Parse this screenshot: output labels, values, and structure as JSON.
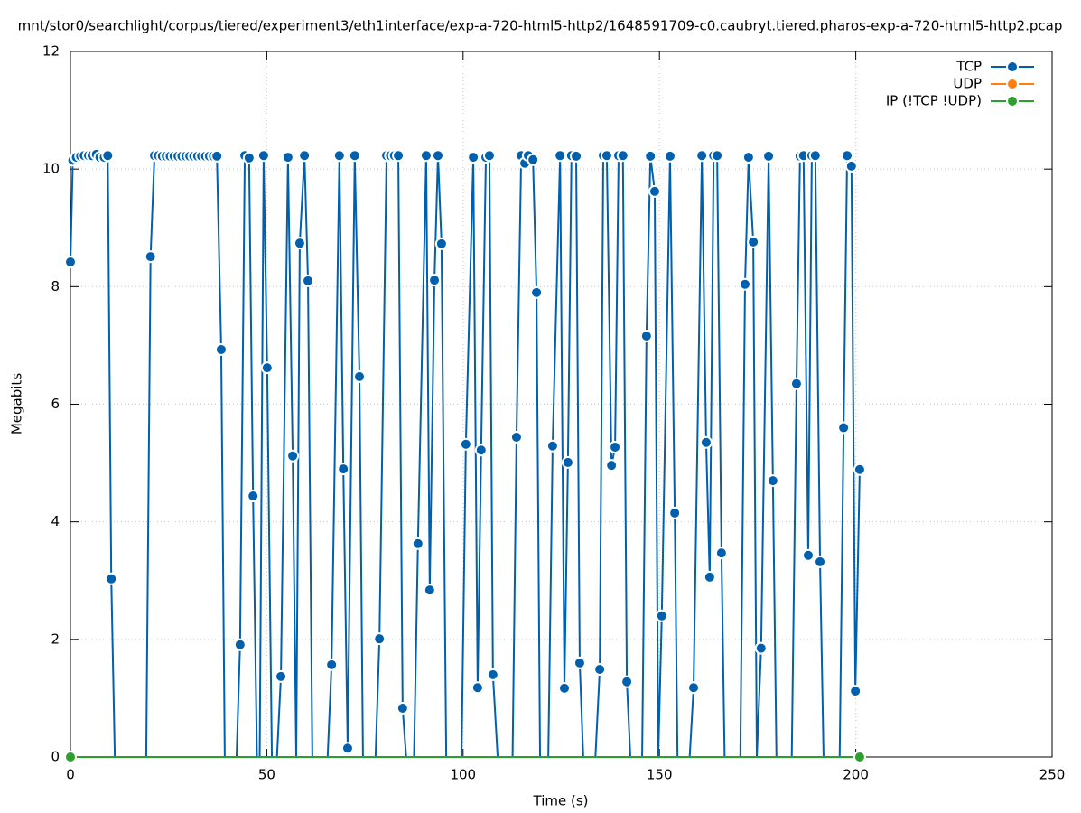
{
  "chart_data": {
    "type": "line",
    "title": "mnt/stor0/searchlight/corpus/tiered/experiment3/eth1interface/exp-a-720-html5-http2/1648591709-c0.caubryt.tiered.pharos-exp-a-720-html5-http2.pcap",
    "xlabel": "Time (s)",
    "ylabel": "Megabits",
    "xlim": [
      0,
      250
    ],
    "xticks": [
      0,
      50,
      100,
      150,
      200,
      250
    ],
    "ylim": [
      0,
      12
    ],
    "yticks": [
      0,
      2,
      4,
      6,
      8,
      10,
      12
    ],
    "grid": true,
    "legend": "top-right",
    "series": [
      {
        "name": "TCP",
        "color": "#0060ad",
        "x": [
          0,
          0.6,
          1.5,
          2.6,
          3.5,
          4.6,
          5.5,
          6.6,
          7.5,
          8.6,
          9.5,
          10.4,
          11.3,
          19.3,
          20.4,
          21.4,
          22.4,
          23.4,
          24.4,
          25.4,
          26.4,
          27.4,
          28.4,
          29.4,
          30.4,
          31.4,
          32.4,
          33.4,
          34.4,
          35.4,
          36.4,
          37.3,
          38.4,
          39.3,
          42.3,
          43.2,
          44.4,
          45.5,
          46.5,
          47.5,
          48.2,
          49.2,
          50.1,
          51.3,
          52.6,
          53.6,
          55.4,
          56.6,
          57.5,
          58.4,
          59.6,
          60.5,
          61.6,
          65.5,
          66.5,
          68.5,
          69.5,
          70.6,
          72.4,
          73.6,
          74.5,
          77.7,
          78.7,
          80.5,
          81.5,
          82.5,
          83.5,
          84.6,
          85.5,
          87.5,
          88.5,
          90.6,
          91.5,
          92.7,
          93.6,
          94.5,
          95.7,
          99.6,
          100.7,
          102.6,
          103.7,
          104.6,
          105.8,
          106.7,
          107.6,
          108.8,
          112.6,
          113.6,
          114.8,
          115.7,
          116.6,
          117.8,
          118.7,
          119.6,
          121.7,
          122.8,
          124.7,
          125.8,
          126.7,
          127.6,
          128.8,
          129.7,
          130.6,
          133.7,
          134.8,
          135.7,
          136.6,
          137.8,
          138.7,
          139.6,
          140.7,
          141.7,
          142.6,
          145.6,
          146.7,
          147.7,
          148.8,
          149.7,
          150.6,
          152.7,
          153.9,
          154.6,
          157.7,
          158.7,
          160.8,
          161.9,
          162.8,
          163.8,
          164.7,
          165.8,
          166.6,
          170.6,
          171.8,
          172.7,
          173.9,
          174.8,
          175.9,
          177.8,
          178.9,
          179.8,
          183.7,
          184.9,
          185.8,
          186.7,
          187.9,
          188.8,
          189.7,
          190.9,
          191.8,
          195.9,
          196.9,
          197.8,
          198.9,
          199.9,
          201
        ],
        "values": [
          8.42,
          10.15,
          10.2,
          10.22,
          10.23,
          10.23,
          10.23,
          10.25,
          10.2,
          10.2,
          10.23,
          3.03,
          0,
          0,
          8.51,
          10.23,
          10.23,
          10.22,
          10.22,
          10.22,
          10.22,
          10.22,
          10.22,
          10.22,
          10.22,
          10.22,
          10.22,
          10.22,
          10.22,
          10.22,
          10.22,
          10.22,
          6.93,
          0,
          0,
          1.91,
          10.23,
          10.19,
          4.44,
          0,
          0,
          10.23,
          6.62,
          0,
          0,
          1.37,
          10.2,
          5.12,
          0,
          8.74,
          10.23,
          8.1,
          0,
          0,
          1.57,
          10.23,
          4.9,
          0.15,
          10.23,
          6.47,
          0,
          0,
          2.01,
          10.23,
          10.23,
          10.23,
          10.23,
          0.83,
          0,
          0,
          3.63,
          10.23,
          2.84,
          8.11,
          10.23,
          8.73,
          0,
          0,
          5.32,
          10.2,
          1.18,
          5.22,
          10.2,
          10.23,
          1.4,
          0,
          0,
          5.44,
          10.23,
          10.1,
          10.23,
          10.16,
          7.9,
          0,
          0,
          5.29,
          10.23,
          1.17,
          5.01,
          10.23,
          10.22,
          1.6,
          0,
          0,
          1.49,
          10.23,
          10.23,
          4.96,
          5.27,
          10.23,
          10.23,
          1.28,
          0,
          0,
          7.16,
          10.22,
          9.62,
          0,
          2.4,
          10.22,
          4.15,
          0,
          0,
          1.18,
          10.23,
          5.35,
          3.06,
          10.23,
          10.23,
          3.47,
          0,
          0,
          8.04,
          10.2,
          8.76,
          0,
          1.85,
          10.22,
          4.7,
          0,
          0,
          6.35,
          10.22,
          10.23,
          3.43,
          10.23,
          10.23,
          3.32,
          0,
          0,
          5.6,
          10.23,
          10.05,
          1.12,
          4.89
        ]
      },
      {
        "name": "UDP",
        "color": "#ff7f0e",
        "x": [
          0,
          201
        ],
        "values": [
          0,
          0
        ]
      },
      {
        "name": "IP (!TCP  !UDP)",
        "color": "#2ca02c",
        "x": [
          0,
          201
        ],
        "values": [
          0,
          0
        ]
      }
    ]
  }
}
